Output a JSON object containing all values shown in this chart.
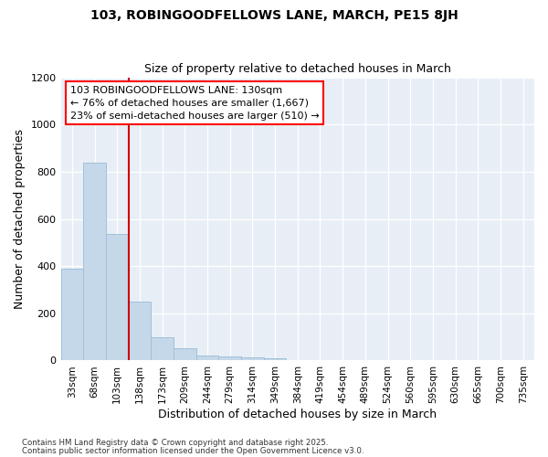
{
  "title1": "103, ROBINGOODFELLOWS LANE, MARCH, PE15 8JH",
  "title2": "Size of property relative to detached houses in March",
  "xlabel": "Distribution of detached houses by size in March",
  "ylabel": "Number of detached properties",
  "categories": [
    "33sqm",
    "68sqm",
    "103sqm",
    "138sqm",
    "173sqm",
    "209sqm",
    "244sqm",
    "279sqm",
    "314sqm",
    "349sqm",
    "384sqm",
    "419sqm",
    "454sqm",
    "489sqm",
    "524sqm",
    "560sqm",
    "595sqm",
    "630sqm",
    "665sqm",
    "700sqm",
    "735sqm"
  ],
  "values": [
    390,
    840,
    535,
    248,
    100,
    52,
    22,
    17,
    12,
    10,
    0,
    0,
    0,
    0,
    0,
    0,
    0,
    0,
    0,
    0,
    0
  ],
  "bar_color": "#c5d8ea",
  "bar_edge_color": "#a0c0d8",
  "vline_color": "#cc0000",
  "annotation_line1": "103 ROBINGOODFELLOWS LANE: 130sqm",
  "annotation_line2": "← 76% of detached houses are smaller (1,667)",
  "annotation_line3": "23% of semi-detached houses are larger (510) →",
  "ylim": [
    0,
    1200
  ],
  "yticks": [
    0,
    200,
    400,
    600,
    800,
    1000,
    1200
  ],
  "plot_bg": "#e8eef5",
  "footer1": "Contains HM Land Registry data © Crown copyright and database right 2025.",
  "footer2": "Contains public sector information licensed under the Open Government Licence v3.0."
}
